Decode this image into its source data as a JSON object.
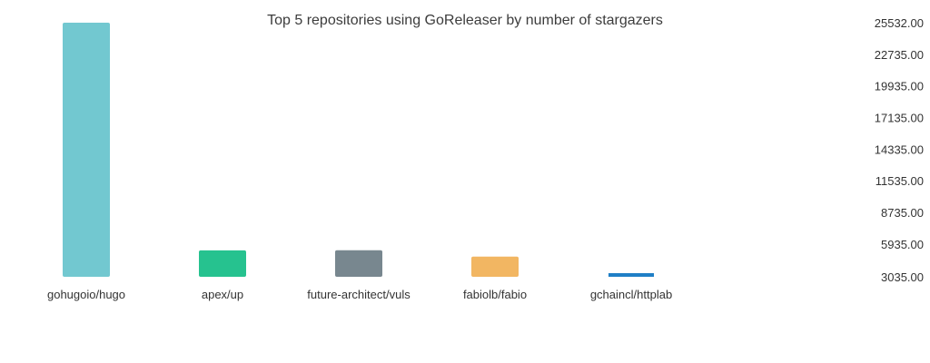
{
  "chart_data": {
    "type": "bar",
    "title": "Top 5 repositories using GoReleaser by number of stargazers",
    "xlabel": "",
    "ylabel": "",
    "categories": [
      "gohugoio/hugo",
      "apex/up",
      "future-architect/vuls",
      "fabiolb/fabio",
      "gchaincl/httplab"
    ],
    "values": [
      25532,
      5375,
      5385,
      4825,
      3140
    ],
    "colors": [
      "#72c8d0",
      "#26c28f",
      "#78878f",
      "#f2b662",
      "#1f7fc6"
    ],
    "ylim": [
      3035,
      25532
    ],
    "y_ticks": [
      "3035.00",
      "5935.00",
      "8735.00",
      "11535.00",
      "14335.00",
      "17135.00",
      "19935.00",
      "22735.00",
      "25532.00"
    ],
    "y_axis_position": "right",
    "grid": false,
    "legend": "none"
  }
}
